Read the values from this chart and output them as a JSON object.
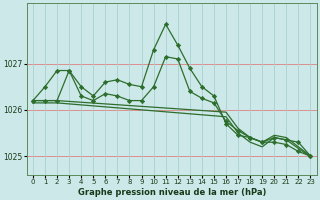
{
  "xlabel": "Graphe pression niveau de la mer (hPa)",
  "background_color": "#cce8e8",
  "grid_color_h": "#e08080",
  "grid_color_v": "#aad0d0",
  "line_color": "#2d6e2d",
  "ylim": [
    1024.6,
    1028.3
  ],
  "yticks": [
    1025,
    1026,
    1027
  ],
  "xlim": [
    -0.5,
    23.5
  ],
  "xticks": [
    0,
    1,
    2,
    3,
    4,
    5,
    6,
    7,
    8,
    9,
    10,
    11,
    12,
    13,
    14,
    15,
    16,
    17,
    18,
    19,
    20,
    21,
    22,
    23
  ],
  "line1": [
    1026.2,
    1026.5,
    1026.85,
    1026.85,
    1026.5,
    1026.3,
    1026.6,
    1026.65,
    1026.55,
    1026.5,
    1027.3,
    1027.85,
    1027.4,
    1026.9,
    1026.5,
    1026.3,
    1025.7,
    1025.45,
    1025.4,
    1025.3,
    1025.4,
    1025.35,
    1025.3,
    1025.0
  ],
  "line2": [
    1026.2,
    1026.2,
    1026.2,
    1026.85,
    1026.3,
    1026.2,
    1026.35,
    1026.3,
    1026.2,
    1026.2,
    1026.5,
    1027.15,
    1027.1,
    1026.4,
    1026.25,
    1026.15,
    1025.75,
    1025.55,
    1025.4,
    1025.3,
    1025.3,
    1025.25,
    1025.1,
    1025.0
  ],
  "line3_x": [
    0,
    2,
    16,
    17,
    18,
    19,
    20,
    21,
    23
  ],
  "line3_y": [
    1026.2,
    1026.2,
    1025.95,
    1025.6,
    1025.4,
    1025.3,
    1025.45,
    1025.4,
    1025.0
  ],
  "line4_x": [
    0,
    2,
    16,
    17,
    18,
    19,
    20,
    21,
    23
  ],
  "line4_y": [
    1026.15,
    1026.15,
    1025.85,
    1025.5,
    1025.3,
    1025.2,
    1025.4,
    1025.35,
    1024.98
  ]
}
